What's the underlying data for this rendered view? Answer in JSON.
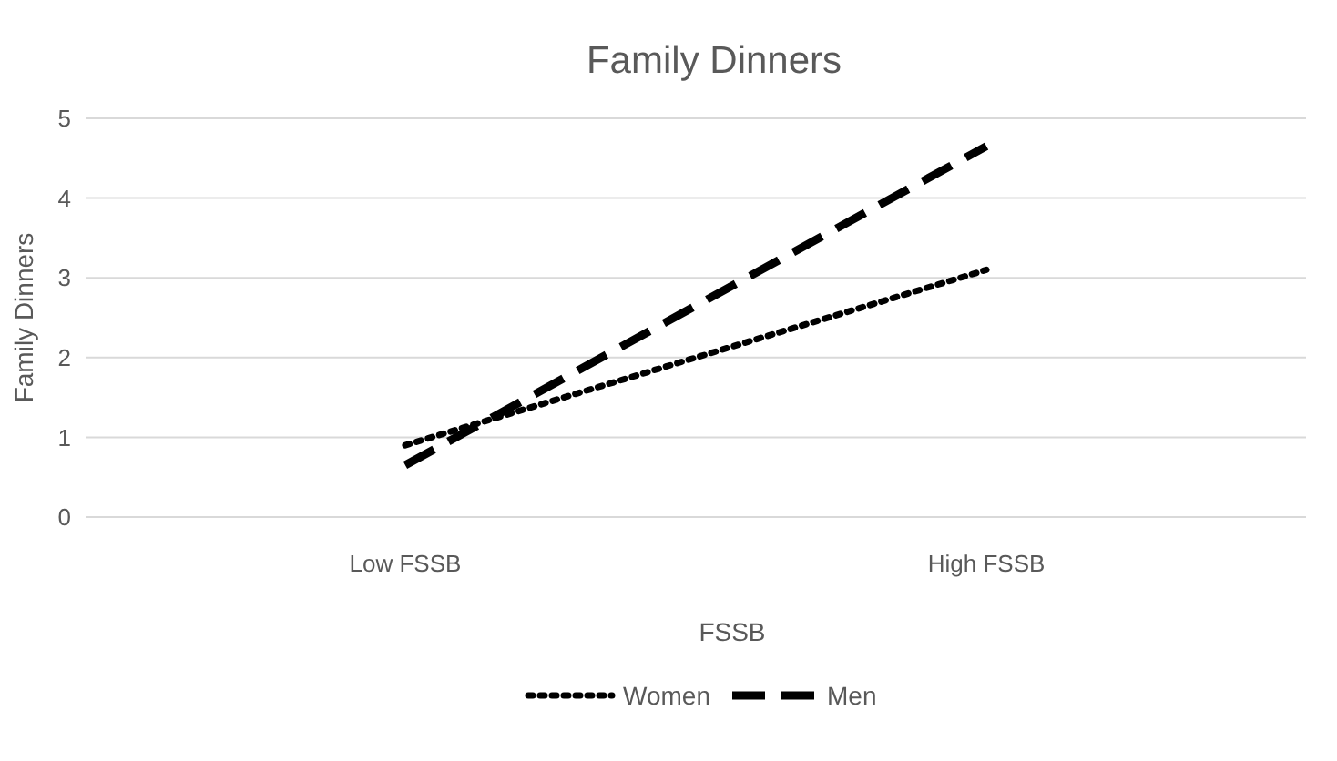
{
  "chart_data": {
    "type": "line",
    "title": "Family Dinners",
    "xlabel": "FSSB",
    "ylabel": "Family Dinners",
    "categories": [
      "Low FSSB",
      "High FSSB"
    ],
    "series": [
      {
        "name": "Women",
        "color": "#000000",
        "line_style": "dotted",
        "values": [
          0.9,
          3.1
        ]
      },
      {
        "name": "Men",
        "color": "#000000",
        "line_style": "dashed",
        "values": [
          0.65,
          4.65
        ]
      }
    ],
    "ylim": [
      0,
      5
    ],
    "yticks": [
      0,
      1,
      2,
      3,
      4,
      5
    ],
    "grid": "y",
    "legend": "bottom",
    "marker": "none"
  }
}
